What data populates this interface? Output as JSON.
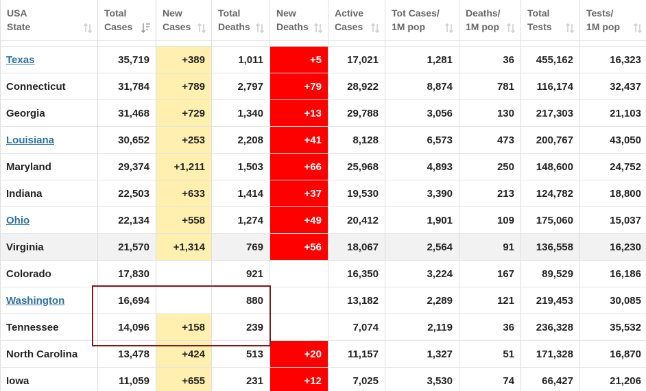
{
  "columns": [
    {
      "line1": "USA",
      "line2": "State"
    },
    {
      "line1": "Total",
      "line2": "Cases"
    },
    {
      "line1": "New",
      "line2": "Cases"
    },
    {
      "line1": "Total",
      "line2": "Deaths"
    },
    {
      "line1": "New",
      "line2": "Deaths"
    },
    {
      "line1": "Active",
      "line2": "Cases"
    },
    {
      "line1": "Tot Cases/",
      "line2": "1M pop"
    },
    {
      "line1": "Deaths/",
      "line2": "1M pop"
    },
    {
      "line1": "Total",
      "line2": "Tests"
    },
    {
      "line1": "Tests/",
      "line2": "1M pop"
    }
  ],
  "sorted_column": "Total Cases",
  "rows": [
    {
      "state": "Texas",
      "link": true,
      "total_cases": "35,719",
      "new_cases": "+389",
      "total_deaths": "1,011",
      "new_deaths": "+5",
      "active_cases": "17,021",
      "cases_per_1m": "1,281",
      "deaths_per_1m": "36",
      "total_tests": "455,162",
      "tests_per_1m": "16,323"
    },
    {
      "state": "Connecticut",
      "link": false,
      "total_cases": "31,784",
      "new_cases": "+789",
      "total_deaths": "2,797",
      "new_deaths": "+79",
      "active_cases": "28,922",
      "cases_per_1m": "8,874",
      "deaths_per_1m": "781",
      "total_tests": "116,174",
      "tests_per_1m": "32,437"
    },
    {
      "state": "Georgia",
      "link": false,
      "total_cases": "31,468",
      "new_cases": "+729",
      "total_deaths": "1,340",
      "new_deaths": "+13",
      "active_cases": "29,788",
      "cases_per_1m": "3,056",
      "deaths_per_1m": "130",
      "total_tests": "217,303",
      "tests_per_1m": "21,103"
    },
    {
      "state": "Louisiana",
      "link": true,
      "total_cases": "30,652",
      "new_cases": "+253",
      "total_deaths": "2,208",
      "new_deaths": "+41",
      "active_cases": "8,128",
      "cases_per_1m": "6,573",
      "deaths_per_1m": "473",
      "total_tests": "200,767",
      "tests_per_1m": "43,050"
    },
    {
      "state": "Maryland",
      "link": false,
      "total_cases": "29,374",
      "new_cases": "+1,211",
      "total_deaths": "1,503",
      "new_deaths": "+66",
      "active_cases": "25,968",
      "cases_per_1m": "4,893",
      "deaths_per_1m": "250",
      "total_tests": "148,600",
      "tests_per_1m": "24,752"
    },
    {
      "state": "Indiana",
      "link": false,
      "total_cases": "22,503",
      "new_cases": "+633",
      "total_deaths": "1,414",
      "new_deaths": "+37",
      "active_cases": "19,530",
      "cases_per_1m": "3,390",
      "deaths_per_1m": "213",
      "total_tests": "124,782",
      "tests_per_1m": "18,800"
    },
    {
      "state": "Ohio",
      "link": true,
      "total_cases": "22,134",
      "new_cases": "+558",
      "total_deaths": "1,274",
      "new_deaths": "+49",
      "active_cases": "20,412",
      "cases_per_1m": "1,901",
      "deaths_per_1m": "109",
      "total_tests": "175,060",
      "tests_per_1m": "15,037"
    },
    {
      "state": "Virginia",
      "link": false,
      "hover": true,
      "total_cases": "21,570",
      "new_cases": "+1,314",
      "total_deaths": "769",
      "new_deaths": "+56",
      "active_cases": "18,067",
      "cases_per_1m": "2,564",
      "deaths_per_1m": "91",
      "total_tests": "136,558",
      "tests_per_1m": "16,230"
    },
    {
      "state": "Colorado",
      "link": false,
      "total_cases": "17,830",
      "new_cases": "",
      "total_deaths": "921",
      "new_deaths": "",
      "active_cases": "16,350",
      "cases_per_1m": "3,224",
      "deaths_per_1m": "167",
      "total_tests": "89,529",
      "tests_per_1m": "16,186"
    },
    {
      "state": "Washington",
      "link": true,
      "total_cases": "16,694",
      "new_cases": "",
      "total_deaths": "880",
      "new_deaths": "",
      "active_cases": "13,182",
      "cases_per_1m": "2,289",
      "deaths_per_1m": "121",
      "total_tests": "219,453",
      "tests_per_1m": "30,085"
    },
    {
      "state": "Tennessee",
      "link": false,
      "total_cases": "14,096",
      "new_cases": "+158",
      "total_deaths": "239",
      "new_deaths": "",
      "active_cases": "7,074",
      "cases_per_1m": "2,119",
      "deaths_per_1m": "36",
      "total_tests": "236,328",
      "tests_per_1m": "35,532"
    },
    {
      "state": "North Carolina",
      "link": false,
      "total_cases": "13,478",
      "new_cases": "+424",
      "total_deaths": "513",
      "new_deaths": "+20",
      "active_cases": "11,157",
      "cases_per_1m": "1,327",
      "deaths_per_1m": "51",
      "total_tests": "171,328",
      "tests_per_1m": "16,870"
    },
    {
      "state": "Iowa",
      "link": false,
      "total_cases": "11,059",
      "new_cases": "+655",
      "total_deaths": "231",
      "new_deaths": "+12",
      "active_cases": "7,025",
      "cases_per_1m": "3,530",
      "deaths_per_1m": "74",
      "total_tests": "66,427",
      "tests_per_1m": "21,206"
    }
  ],
  "colors": {
    "new_cases_bg": "#fff0b0",
    "new_deaths_bg": "#ff0000",
    "link": "#2f6f9f",
    "selection_border": "#7b1b1f"
  },
  "icons": {
    "sort_inactive": "sort-updown-icon",
    "sort_active": "sort-descending-icon"
  }
}
